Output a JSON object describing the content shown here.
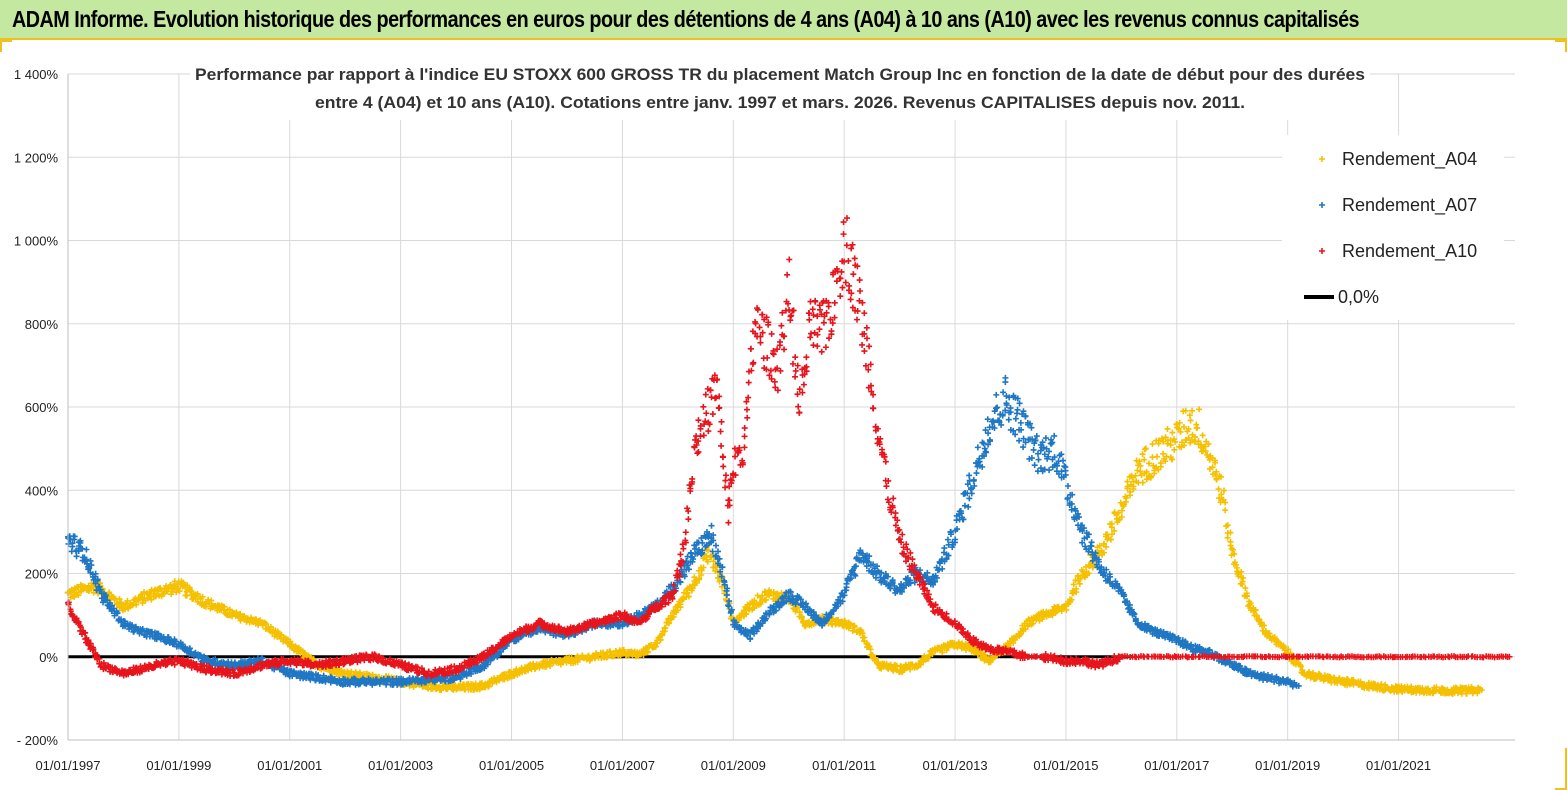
{
  "header": {
    "title": "ADAM Informe. Evolution historique des performances en euros pour des détentions de 4 ans (A04) à 10 ans (A10) avec les revenus connus capitalisés"
  },
  "chart_data": {
    "type": "scatter",
    "title_lines": [
      "Performance par rapport à l'indice EU STOXX 600 GROSS TR  du placement Match Group Inc en fonction de la date de début pour des durées",
      "entre 4 (A04) et 10 ans (A10).  Cotations entre janv. 1997 et mars. 2026. Revenus CAPITALISES depuis nov. 2011."
    ],
    "xlabel": "",
    "ylabel": "",
    "xlim": [
      1997,
      2023.1
    ],
    "ylim": [
      -200,
      1400
    ],
    "x_ticks": [
      {
        "x": 1997,
        "label": "01/01/1997"
      },
      {
        "x": 1999,
        "label": "01/01/1999"
      },
      {
        "x": 2001,
        "label": "01/01/2001"
      },
      {
        "x": 2003,
        "label": "01/01/2003"
      },
      {
        "x": 2005,
        "label": "01/01/2005"
      },
      {
        "x": 2007,
        "label": "01/01/2007"
      },
      {
        "x": 2009,
        "label": "01/01/2009"
      },
      {
        "x": 2011,
        "label": "01/01/2011"
      },
      {
        "x": 2013,
        "label": "01/01/2013"
      },
      {
        "x": 2015,
        "label": "01/01/2015"
      },
      {
        "x": 2017,
        "label": "01/01/2017"
      },
      {
        "x": 2019,
        "label": "01/01/2019"
      },
      {
        "x": 2021,
        "label": "01/01/2021"
      }
    ],
    "y_ticks": [
      {
        "y": -200,
        "label": "- 200%"
      },
      {
        "y": 0,
        "label": "0%"
      },
      {
        "y": 200,
        "label": "200%"
      },
      {
        "y": 400,
        "label": "400%"
      },
      {
        "y": 600,
        "label": "600%"
      },
      {
        "y": 800,
        "label": "800%"
      },
      {
        "y": 1000,
        "label": "1 000%"
      },
      {
        "y": 1200,
        "label": "1 200%"
      },
      {
        "y": 1400,
        "label": "1 400%"
      }
    ],
    "grid": true,
    "legend_position": "top-right",
    "legend": [
      {
        "name": "Rendement_A04",
        "marker": "+",
        "color": "#f5c000"
      },
      {
        "name": "Rendement_A07",
        "marker": "+",
        "color": "#1f77c4"
      },
      {
        "name": "Rendement_A10",
        "marker": "+",
        "color": "#e8141c"
      },
      {
        "name": "0,0%",
        "marker": "line",
        "color": "#000000"
      }
    ],
    "series": [
      {
        "name": "Rendement_A04",
        "color": "#f5c000",
        "markers_per_point": 3,
        "x": [
          1997.0,
          1997.5,
          1998.0,
          1998.5,
          1999.0,
          1999.5,
          2000.0,
          2000.5,
          2001.0,
          2001.5,
          2002.0,
          2002.5,
          2003.0,
          2003.5,
          2004.0,
          2004.5,
          2005.0,
          2005.5,
          2006.0,
          2006.5,
          2007.0,
          2007.3,
          2007.6,
          2008.0,
          2008.3,
          2008.55,
          2008.8,
          2009.0,
          2009.3,
          2009.6,
          2010.0,
          2010.3,
          2010.6,
          2011.0,
          2011.3,
          2011.6,
          2012.0,
          2012.3,
          2012.6,
          2013.0,
          2013.3,
          2013.6,
          2014.0,
          2014.3,
          2014.6,
          2015.0,
          2015.3,
          2015.6,
          2016.0,
          2016.3,
          2016.6,
          2017.0,
          2017.2,
          2017.4,
          2017.6,
          2017.8,
          2018.0,
          2018.3,
          2018.6,
          2019.0,
          2019.3,
          2019.6,
          2020.0,
          2020.5,
          2021.0,
          2021.5,
          2022.0,
          2022.5
        ],
        "y": [
          150,
          170,
          120,
          150,
          170,
          130,
          100,
          80,
          30,
          -20,
          -40,
          -50,
          -60,
          -70,
          -75,
          -70,
          -40,
          -20,
          -10,
          0,
          10,
          5,
          30,
          120,
          180,
          250,
          180,
          80,
          120,
          150,
          140,
          80,
          90,
          80,
          60,
          -20,
          -30,
          -20,
          10,
          30,
          20,
          -10,
          30,
          80,
          100,
          120,
          200,
          250,
          350,
          450,
          480,
          520,
          560,
          550,
          480,
          400,
          250,
          130,
          60,
          10,
          -40,
          -50,
          -60,
          -70,
          -78,
          -80,
          -82,
          -80
        ]
      },
      {
        "name": "Rendement_A07",
        "color": "#1f77c4",
        "markers_per_point": 3,
        "x": [
          1997.0,
          1997.3,
          1997.6,
          1998.0,
          1998.3,
          1998.6,
          1999.0,
          1999.5,
          2000.0,
          2000.5,
          2001.0,
          2001.5,
          2002.0,
          2002.5,
          2003.0,
          2003.5,
          2004.0,
          2004.5,
          2005.0,
          2005.5,
          2006.0,
          2006.5,
          2007.0,
          2007.3,
          2007.6,
          2008.0,
          2008.3,
          2008.6,
          2008.8,
          2009.0,
          2009.3,
          2009.6,
          2010.0,
          2010.3,
          2010.6,
          2011.0,
          2011.3,
          2011.6,
          2012.0,
          2012.3,
          2012.6,
          2013.0,
          2013.3,
          2013.6,
          2013.9,
          2014.2,
          2014.5,
          2014.8,
          2015.0,
          2015.3,
          2015.6,
          2016.0,
          2016.3,
          2016.6,
          2017.0,
          2017.3,
          2017.6,
          2018.0,
          2018.3,
          2018.6,
          2019.0,
          2019.2
        ],
        "y": [
          280,
          250,
          150,
          80,
          60,
          50,
          30,
          -10,
          -20,
          -10,
          -40,
          -50,
          -60,
          -60,
          -60,
          -55,
          -50,
          -20,
          40,
          70,
          50,
          80,
          80,
          100,
          120,
          180,
          250,
          290,
          200,
          80,
          50,
          100,
          150,
          120,
          80,
          150,
          250,
          200,
          160,
          200,
          180,
          300,
          420,
          550,
          620,
          560,
          480,
          500,
          420,
          300,
          220,
          150,
          80,
          60,
          40,
          20,
          10,
          -20,
          -40,
          -50,
          -60,
          -70
        ]
      },
      {
        "name": "Rendement_A10",
        "color": "#e8141c",
        "markers_per_point": 3,
        "x": [
          1997.0,
          1997.3,
          1997.6,
          1998.0,
          1998.3,
          1998.6,
          1999.0,
          1999.5,
          2000.0,
          2000.5,
          2001.0,
          2001.5,
          2002.0,
          2002.5,
          2003.0,
          2003.5,
          2004.0,
          2004.5,
          2005.0,
          2005.5,
          2006.0,
          2006.5,
          2007.0,
          2007.3,
          2007.6,
          2007.9,
          2008.1,
          2008.3,
          2008.5,
          2008.7,
          2008.9,
          2009.0,
          2009.2,
          2009.4,
          2009.6,
          2009.8,
          2010.0,
          2010.2,
          2010.4,
          2010.6,
          2010.8,
          2011.0,
          2011.2,
          2011.4,
          2011.6,
          2011.8,
          2012.0,
          2012.3,
          2012.6,
          2013.0,
          2013.3,
          2013.6,
          2014.0,
          2014.3,
          2014.6,
          2015.0,
          2015.3,
          2015.6,
          2016.0,
          2016.5,
          2017.0,
          2017.5,
          2018.0,
          2018.5,
          2019.0,
          2019.5,
          2020.0,
          2020.5,
          2021.0,
          2021.5,
          2022.0,
          2022.5,
          2023.0
        ],
        "y": [
          120,
          50,
          -20,
          -40,
          -30,
          -20,
          -10,
          -30,
          -40,
          -20,
          -10,
          -20,
          -10,
          0,
          -20,
          -40,
          -30,
          0,
          50,
          80,
          60,
          80,
          100,
          80,
          120,
          150,
          250,
          500,
          580,
          650,
          350,
          450,
          520,
          800,
          750,
          700,
          880,
          600,
          800,
          780,
          850,
          1000,
          900,
          750,
          550,
          400,
          280,
          200,
          120,
          80,
          40,
          20,
          10,
          0,
          0,
          -10,
          -10,
          -20,
          0,
          0,
          0,
          0,
          0,
          0,
          0,
          0,
          0,
          0,
          0,
          0,
          0,
          0,
          0
        ]
      }
    ],
    "reference_line": {
      "y": 0,
      "label": "0,0%",
      "color": "#000000"
    }
  }
}
